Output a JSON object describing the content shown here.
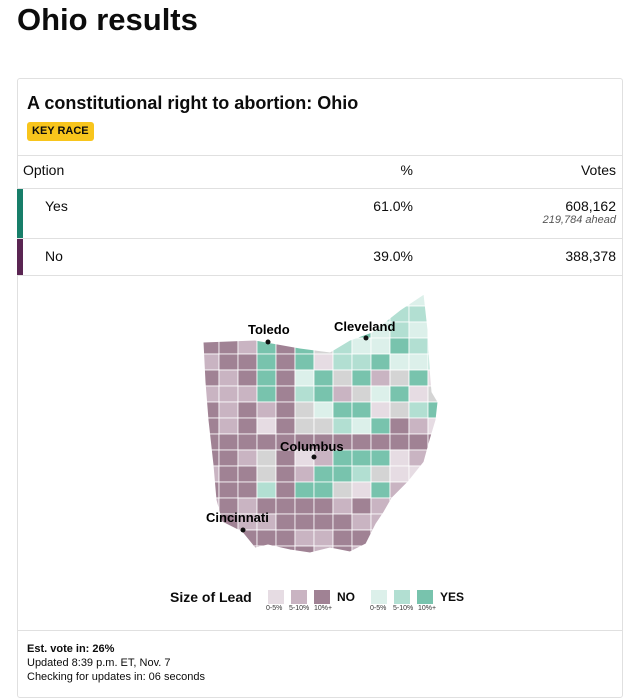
{
  "header": {
    "title": "Ohio results"
  },
  "card": {
    "title": "A constitutional right to abortion: Ohio",
    "badge": "KEY RACE"
  },
  "table": {
    "columns": [
      "Option",
      "%",
      "Votes"
    ],
    "rows": [
      {
        "option": "Yes",
        "percent": "61.0%",
        "votes": "608,162",
        "note": "219,784 ahead"
      },
      {
        "option": "No",
        "percent": "39.0%",
        "votes": "388,378"
      }
    ]
  },
  "map": {
    "cities": [
      "Toledo",
      "Cleveland",
      "Columbus",
      "Cincinnati"
    ]
  },
  "legend": {
    "title": "Size of Lead",
    "no": {
      "label": "NO",
      "steps": [
        "0-5%",
        "5-10%",
        "10%+"
      ]
    },
    "yes": {
      "label": "YES",
      "steps": [
        "0-5%",
        "5-10%",
        "10%+"
      ]
    }
  },
  "footer": {
    "vote_in": "Est. vote in: 26%",
    "updated": "Updated 8:39 p.m. ET, Nov. 7",
    "checking": "Checking for updates in: 06 seconds"
  }
}
